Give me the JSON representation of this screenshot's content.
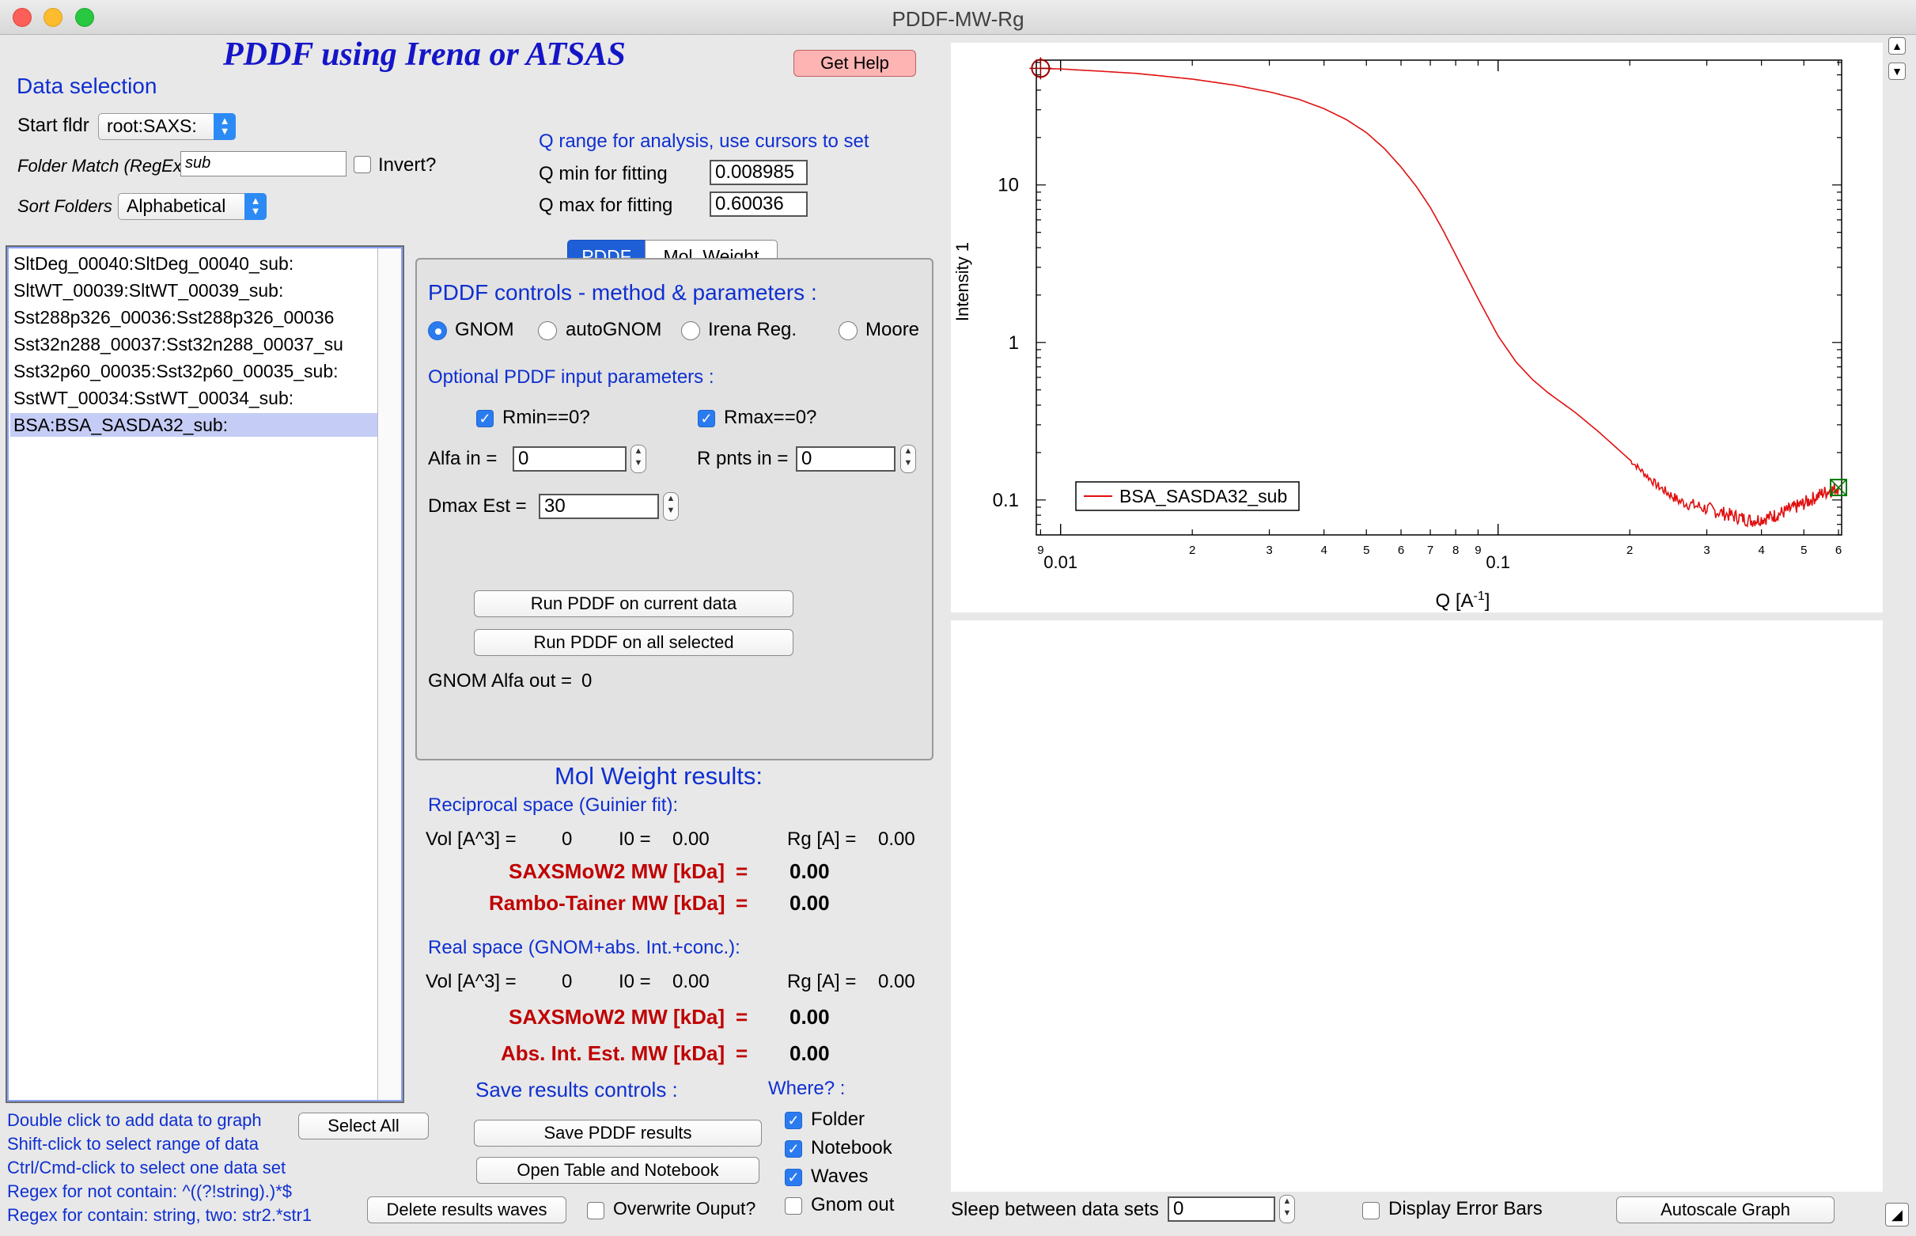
{
  "window": {
    "title": "PDDF-MW-Rg"
  },
  "header": {
    "title": "PDDF using Irena or ATSAS",
    "help_label": "Get Help"
  },
  "data_selection": {
    "title": "Data selection",
    "start_folder_label": "Start fldr",
    "start_folder_value": "root:SAXS:",
    "folder_match_label": "Folder Match (RegEx)",
    "folder_match_value": "sub",
    "invert_label": "Invert?",
    "sort_label": "Sort Folders",
    "sort_value": "Alphabetical",
    "items": [
      "SltDeg_00040:SltDeg_00040_sub:",
      "SltWT_00039:SltWT_00039_sub:",
      "Sst288p326_00036:Sst288p326_00036",
      "Sst32n288_00037:Sst32n288_00037_su",
      "Sst32p60_00035:Sst32p60_00035_sub:",
      "SstWT_00034:SstWT_00034_sub:",
      "BSA:BSA_SASDA32_sub:"
    ],
    "hints": [
      "Double click to add data to graph",
      "Shift-click to select range of data",
      "Ctrl/Cmd-click to select one data set",
      "Regex for not contain: ^((?!string).)*$",
      "Regex for contain:  string, two: str2.*str1"
    ],
    "select_all_label": "Select All",
    "delete_label": "Delete results waves",
    "overwrite_label": "Overwrite Ouput?"
  },
  "q_range": {
    "title": "Q range for analysis, use cursors to set",
    "qmin_label": "Q min for fitting",
    "qmin_value": "0.008985",
    "qmax_label": "Q max for fitting",
    "qmax_value": "0.60036"
  },
  "tabs": {
    "pddf": "PDDF",
    "mol_weight": "Mol. Weight"
  },
  "pddf": {
    "title": "PDDF controls - method & parameters :",
    "methods": [
      "GNOM",
      "autoGNOM",
      "Irena Reg.",
      "Moore"
    ],
    "optional_title": "Optional PDDF input parameters :",
    "rmin_label": "Rmin==0?",
    "rmax_label": "Rmax==0?",
    "alfa_label": "Alfa in =",
    "alfa_value": "0",
    "rpnts_label": "R pnts in =",
    "rpnts_value": "0",
    "dmax_label": "Dmax Est =",
    "dmax_value": "30",
    "run_current_label": "Run PDDF on current data",
    "run_all_label": "Run PDDF on all selected",
    "gnom_alfa_label": "GNOM Alfa out =",
    "gnom_alfa_value": "0"
  },
  "mw": {
    "title": "Mol Weight results:",
    "recip_title": "Reciprocal space (Guinier fit):",
    "vol_label": "Vol [A^3] =",
    "vol_value": "0",
    "i0_label": "I0 =",
    "i0_value": "0.00",
    "rg_label": "Rg [A] =",
    "rg_value": "0.00",
    "saxsmow_label": "SAXSMoW2 MW [kDa]",
    "eq": "=",
    "saxsmow_value": "0.00",
    "rambo_label": "Rambo-Tainer MW [kDa]",
    "rambo_value": "0.00",
    "real_title": "Real space (GNOM+abs. Int.+conc.):",
    "vol2_value": "0",
    "i02_value": "0.00",
    "rg2_value": "0.00",
    "saxsmow2_value": "0.00",
    "absint_label": "Abs. Int. Est. MW [kDa]",
    "absint_value": "0.00"
  },
  "save": {
    "title": "Save results controls :",
    "where_label": "Where? :",
    "save_pddf_label": "Save PDDF results",
    "open_table_label": "Open Table and Notebook",
    "folder_label": "Folder",
    "notebook_label": "Notebook",
    "waves_label": "Waves",
    "gnom_out_label": "Gnom out"
  },
  "bottom": {
    "sleep_label": "Sleep between data sets",
    "sleep_value": "0",
    "error_bars_label": "Display Error Bars",
    "autoscale_label": "Autoscale Graph"
  },
  "chart_data": {
    "type": "line",
    "xlabel": "Q [A",
    "xlabel_sup": "-1",
    "xlabel_end": "]",
    "ylabel": "Intensity 1",
    "x_scale": "log",
    "y_scale": "log",
    "xlim": [
      0.0088,
      0.61
    ],
    "ylim": [
      0.06,
      62
    ],
    "y_ticks": [
      {
        "value": 10,
        "label": "10"
      },
      {
        "value": 1,
        "label": "1"
      },
      {
        "value": 0.1,
        "label": "0.1"
      }
    ],
    "x_major_ticks": [
      {
        "value": 0.01,
        "label": "0.01"
      },
      {
        "value": 0.1,
        "label": "0.1"
      }
    ],
    "x_minor_ticks": [
      {
        "value": 0.009,
        "label": "9"
      },
      {
        "value": 0.02,
        "label": "2"
      },
      {
        "value": 0.03,
        "label": "3"
      },
      {
        "value": 0.04,
        "label": "4"
      },
      {
        "value": 0.05,
        "label": "5"
      },
      {
        "value": 0.06,
        "label": "6"
      },
      {
        "value": 0.07,
        "label": "7"
      },
      {
        "value": 0.08,
        "label": "8"
      },
      {
        "value": 0.09,
        "label": "9"
      },
      {
        "value": 0.2,
        "label": "2"
      },
      {
        "value": 0.3,
        "label": "3"
      },
      {
        "value": 0.4,
        "label": "4"
      },
      {
        "value": 0.5,
        "label": "5"
      },
      {
        "value": 0.6,
        "label": "6"
      }
    ],
    "legend_placement": "bottom-left",
    "series": [
      {
        "name": "BSA_SASDA32_sub",
        "color": "#e01010",
        "x": [
          0.009,
          0.01,
          0.012,
          0.015,
          0.02,
          0.025,
          0.03,
          0.035,
          0.04,
          0.045,
          0.05,
          0.055,
          0.06,
          0.065,
          0.07,
          0.075,
          0.08,
          0.09,
          0.1,
          0.11,
          0.12,
          0.13,
          0.15,
          0.17,
          0.2,
          0.23,
          0.26,
          0.3,
          0.34,
          0.38,
          0.42,
          0.46,
          0.5,
          0.55,
          0.6
        ],
        "y": [
          55,
          54.5,
          53,
          51,
          47,
          43,
          39,
          35,
          30.5,
          26,
          21.5,
          17,
          13,
          9.8,
          7.2,
          5.1,
          3.6,
          1.9,
          1.1,
          0.75,
          0.58,
          0.48,
          0.36,
          0.27,
          0.18,
          0.125,
          0.098,
          0.088,
          0.08,
          0.074,
          0.078,
          0.086,
          0.095,
          0.11,
          0.12
        ]
      }
    ],
    "cursor_a": {
      "x": 0.009,
      "y": 55
    },
    "cursor_b": {
      "x": 0.6,
      "y": 0.12
    }
  }
}
